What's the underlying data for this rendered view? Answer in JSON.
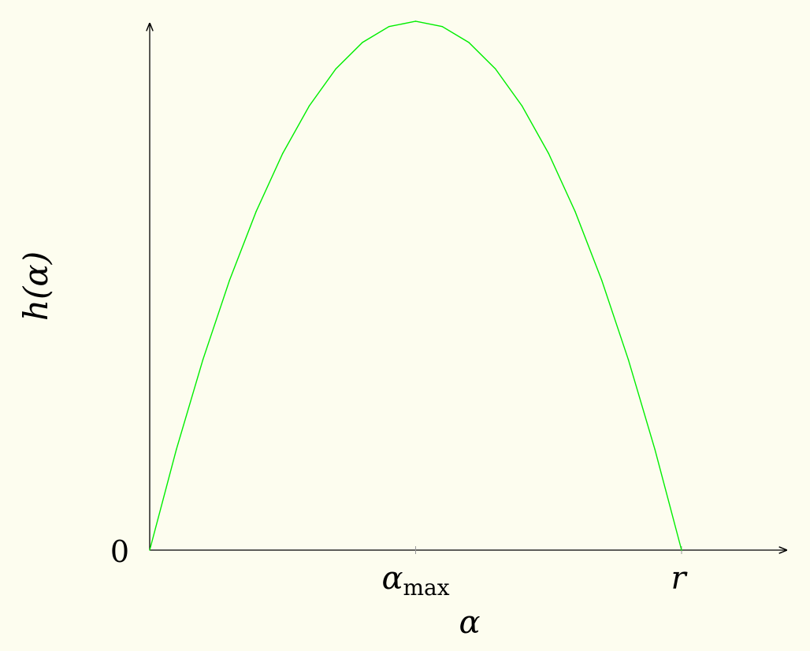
{
  "chart_data": {
    "type": "line",
    "title": "",
    "xlabel": "α",
    "ylabel": "h(α)",
    "x_tick_labels": {
      "alpha_max": {
        "base": "α",
        "sub": "max",
        "x": 0.5
      },
      "r": {
        "text": "r",
        "x": 1.0
      }
    },
    "y_tick_label": "0",
    "xlim": [
      0,
      1.2
    ],
    "ylim": [
      0,
      1.0
    ],
    "grid": false,
    "legend": "none",
    "series": [
      {
        "color": "#00ee00",
        "x": [
          0,
          0.05,
          0.1,
          0.15,
          0.2,
          0.25,
          0.3,
          0.35,
          0.4,
          0.45,
          0.5,
          0.55,
          0.6,
          0.65,
          0.7,
          0.75,
          0.8,
          0.85,
          0.9,
          0.95,
          1.0
        ],
        "y": [
          0,
          0.19,
          0.36,
          0.51,
          0.64,
          0.75,
          0.84,
          0.91,
          0.96,
          0.99,
          1.0,
          0.99,
          0.96,
          0.91,
          0.84,
          0.75,
          0.64,
          0.51,
          0.36,
          0.19,
          0
        ]
      }
    ]
  }
}
